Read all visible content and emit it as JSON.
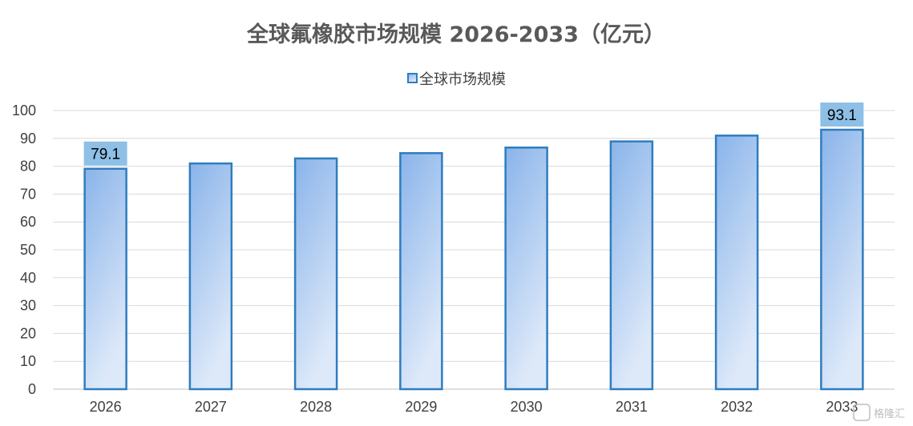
{
  "chart_data": {
    "type": "bar",
    "title": "全球氟橡胶市场规模 2026-2033（亿元）",
    "categories": [
      "2026",
      "2027",
      "2028",
      "2029",
      "2030",
      "2031",
      "2032",
      "2033"
    ],
    "series": [
      {
        "name": "全球市场规模",
        "values": [
          79.1,
          81.0,
          82.8,
          84.7,
          86.7,
          88.9,
          91.0,
          93.1
        ]
      }
    ],
    "data_labels": [
      {
        "category": "2026",
        "text": "79.1"
      },
      {
        "category": "2033",
        "text": "93.1"
      }
    ],
    "ylim": [
      0,
      100
    ],
    "yticks": [
      0,
      10,
      20,
      30,
      40,
      50,
      60,
      70,
      80,
      90,
      100
    ],
    "grid": true,
    "legend": "top-center",
    "colors": {
      "bar_fill_top": "#8ab4ea",
      "bar_fill_bottom": "#dde9f9",
      "bar_stroke": "#2e7dc0",
      "label_box": "#8ebfe7",
      "grid": "#d9d9d9",
      "axis": "#bfbfbf",
      "title": "#595959",
      "text": "#404040"
    }
  },
  "watermark": "格隆汇",
  "watermark_icon": "gelonghui-logo-icon"
}
